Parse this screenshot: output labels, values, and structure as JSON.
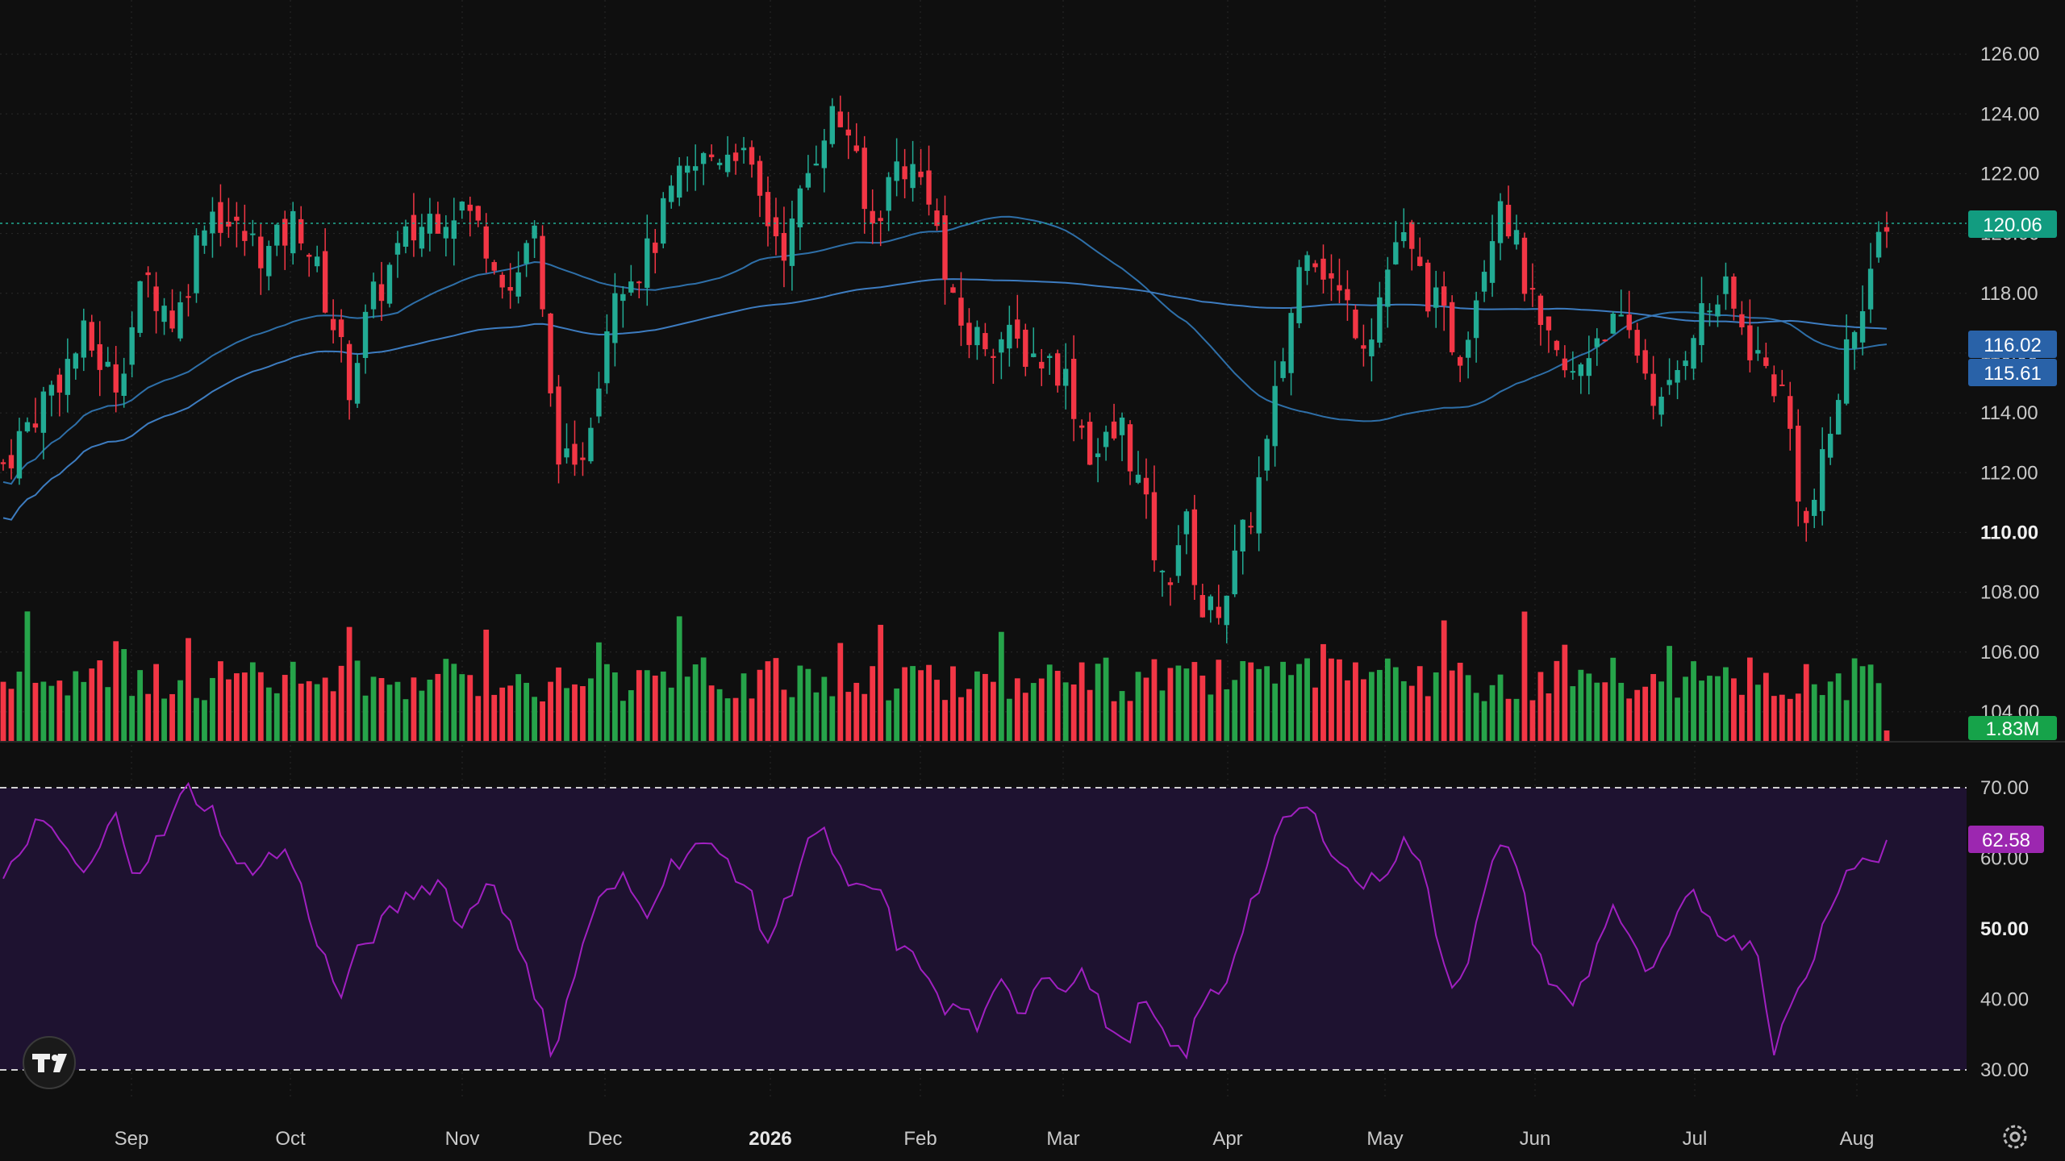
{
  "colors": {
    "background": "#0f0f0f",
    "grid": "#2a2a2a",
    "up": "#22ab94",
    "down": "#f23645",
    "vol_up": "#26a44a",
    "vol_down": "#f23645",
    "ma_fast": "#2e6fa8",
    "ma_slow": "#3d7cc0",
    "rsi_line": "#a020c0",
    "rsi_band": "#1e1230",
    "price_badge": "#129c80",
    "ma_badge": "#2962a8",
    "volume_badge": "#16a34a",
    "rsi_badge": "#9c27b0"
  },
  "logo_icon": "tradingview-logo",
  "settings_icon": "gear-icon",
  "price_axis": {
    "ticks": [
      "126.00",
      "124.00",
      "122.00",
      "120.00",
      "118.00",
      "116.00",
      "114.00",
      "112.00",
      "110.00",
      "108.00",
      "106.00",
      "104.00"
    ],
    "bold_tick": "110.00"
  },
  "rsi_axis": {
    "ticks": [
      "70.00",
      "60.00",
      "50.00",
      "40.00",
      "30.00"
    ],
    "bold_tick": "50.00"
  },
  "time_axis": {
    "labels": [
      "Sep",
      "Oct",
      "Nov",
      "Dec",
      "2026",
      "Feb",
      "Mar",
      "Apr",
      "May",
      "Jun",
      "Jul",
      "Aug"
    ],
    "year_label": "2026"
  },
  "badges": {
    "last_price": "120.06",
    "ma_fast_value": "116.02",
    "ma_slow_value": "115.61",
    "volume": "1.83M",
    "rsi": "62.58"
  },
  "chart_data": {
    "type": "candlestick",
    "price_range": [
      103,
      127
    ],
    "rsi_range": [
      27,
      72
    ],
    "rsi_levels": [
      30,
      70
    ],
    "last_price": 120.06,
    "ma_values": [
      116.02,
      115.61
    ],
    "rsi_last": 62.58,
    "volume_last": "1.83M",
    "close_path": [
      [
        0,
        112.3
      ],
      [
        0.02,
        114.5
      ],
      [
        0.04,
        116.5
      ],
      [
        0.055,
        115.0
      ],
      [
        0.07,
        118.5
      ],
      [
        0.085,
        117.0
      ],
      [
        0.1,
        121.0
      ],
      [
        0.115,
        120.0
      ],
      [
        0.13,
        119.3
      ],
      [
        0.145,
        120.5
      ],
      [
        0.16,
        117.5
      ],
      [
        0.17,
        115.0
      ],
      [
        0.18,
        117.5
      ],
      [
        0.195,
        119.5
      ],
      [
        0.21,
        120.6
      ],
      [
        0.225,
        121.0
      ],
      [
        0.24,
        119.5
      ],
      [
        0.25,
        118.0
      ],
      [
        0.26,
        120.5
      ],
      [
        0.27,
        113.5
      ],
      [
        0.28,
        111.5
      ],
      [
        0.29,
        114.5
      ],
      [
        0.3,
        118.5
      ],
      [
        0.315,
        119.0
      ],
      [
        0.33,
        121.5
      ],
      [
        0.345,
        122.5
      ],
      [
        0.36,
        123.0
      ],
      [
        0.375,
        120.5
      ],
      [
        0.385,
        119.5
      ],
      [
        0.395,
        122.0
      ],
      [
        0.405,
        124.0
      ],
      [
        0.415,
        123.5
      ],
      [
        0.425,
        120.0
      ],
      [
        0.44,
        122.5
      ],
      [
        0.455,
        121.5
      ],
      [
        0.465,
        117.5
      ],
      [
        0.475,
        116.5
      ],
      [
        0.49,
        116.5
      ],
      [
        0.505,
        116.0
      ],
      [
        0.52,
        115.5
      ],
      [
        0.535,
        112.5
      ],
      [
        0.55,
        113.5
      ],
      [
        0.56,
        111.0
      ],
      [
        0.57,
        108.0
      ],
      [
        0.58,
        110.5
      ],
      [
        0.59,
        107.0
      ],
      [
        0.6,
        108.0
      ],
      [
        0.61,
        110.0
      ],
      [
        0.62,
        112.5
      ],
      [
        0.63,
        116.5
      ],
      [
        0.64,
        120.0
      ],
      [
        0.655,
        118.0
      ],
      [
        0.67,
        116.5
      ],
      [
        0.685,
        120.0
      ],
      [
        0.7,
        118.0
      ],
      [
        0.715,
        116.0
      ],
      [
        0.725,
        118.5
      ],
      [
        0.735,
        121.5
      ],
      [
        0.745,
        119.0
      ],
      [
        0.755,
        116.5
      ],
      [
        0.77,
        115.0
      ],
      [
        0.785,
        117.0
      ],
      [
        0.8,
        116.5
      ],
      [
        0.815,
        114.0
      ],
      [
        0.83,
        117.0
      ],
      [
        0.845,
        118.0
      ],
      [
        0.86,
        116.0
      ],
      [
        0.875,
        114.5
      ],
      [
        0.885,
        110.0
      ],
      [
        0.895,
        112.5
      ],
      [
        0.905,
        116.0
      ],
      [
        0.915,
        118.5
      ],
      [
        0.925,
        120.06
      ]
    ],
    "rsi_path": [
      [
        0,
        56
      ],
      [
        0.015,
        65
      ],
      [
        0.03,
        62
      ],
      [
        0.04,
        57
      ],
      [
        0.055,
        66
      ],
      [
        0.065,
        58
      ],
      [
        0.08,
        64
      ],
      [
        0.09,
        70
      ],
      [
        0.105,
        66
      ],
      [
        0.115,
        58
      ],
      [
        0.13,
        60
      ],
      [
        0.14,
        61
      ],
      [
        0.155,
        48
      ],
      [
        0.165,
        40
      ],
      [
        0.175,
        47
      ],
      [
        0.19,
        52
      ],
      [
        0.2,
        55
      ],
      [
        0.215,
        57
      ],
      [
        0.225,
        50
      ],
      [
        0.24,
        58
      ],
      [
        0.255,
        45
      ],
      [
        0.265,
        39
      ],
      [
        0.27,
        31
      ],
      [
        0.28,
        43
      ],
      [
        0.29,
        53
      ],
      [
        0.305,
        57
      ],
      [
        0.315,
        52
      ],
      [
        0.325,
        58
      ],
      [
        0.34,
        62
      ],
      [
        0.355,
        60
      ],
      [
        0.365,
        56
      ],
      [
        0.375,
        48
      ],
      [
        0.385,
        54
      ],
      [
        0.395,
        63
      ],
      [
        0.405,
        63
      ],
      [
        0.415,
        55
      ],
      [
        0.43,
        56
      ],
      [
        0.44,
        47
      ],
      [
        0.455,
        44
      ],
      [
        0.46,
        38
      ],
      [
        0.47,
        39
      ],
      [
        0.48,
        36
      ],
      [
        0.49,
        42
      ],
      [
        0.5,
        38
      ],
      [
        0.51,
        44
      ],
      [
        0.52,
        42
      ],
      [
        0.53,
        44
      ],
      [
        0.54,
        38
      ],
      [
        0.55,
        33
      ],
      [
        0.56,
        40
      ],
      [
        0.57,
        34
      ],
      [
        0.58,
        32
      ],
      [
        0.59,
        40
      ],
      [
        0.6,
        42
      ],
      [
        0.61,
        52
      ],
      [
        0.62,
        58
      ],
      [
        0.63,
        66
      ],
      [
        0.64,
        67
      ],
      [
        0.65,
        63
      ],
      [
        0.66,
        58
      ],
      [
        0.67,
        56
      ],
      [
        0.68,
        59
      ],
      [
        0.69,
        63
      ],
      [
        0.7,
        55
      ],
      [
        0.71,
        42
      ],
      [
        0.72,
        46
      ],
      [
        0.73,
        58
      ],
      [
        0.74,
        63
      ],
      [
        0.75,
        50
      ],
      [
        0.76,
        42
      ],
      [
        0.77,
        39
      ],
      [
        0.78,
        45
      ],
      [
        0.79,
        54
      ],
      [
        0.8,
        47
      ],
      [
        0.81,
        43
      ],
      [
        0.82,
        50
      ],
      [
        0.83,
        55
      ],
      [
        0.84,
        51
      ],
      [
        0.85,
        48
      ],
      [
        0.86,
        49
      ],
      [
        0.87,
        33
      ],
      [
        0.88,
        40
      ],
      [
        0.89,
        47
      ],
      [
        0.9,
        56
      ],
      [
        0.91,
        60
      ],
      [
        0.92,
        59
      ],
      [
        0.925,
        62.58
      ]
    ]
  }
}
